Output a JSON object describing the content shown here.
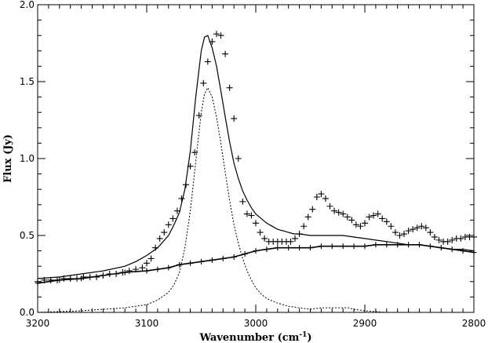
{
  "chart_data": {
    "type": "line",
    "title": "",
    "xlabel_main": "Wavenumber (cm",
    "xlabel_sup": "-1",
    "xlabel_tail": ")",
    "ylabel": "Flux (Jy)",
    "xlim": [
      3200,
      2800
    ],
    "ylim": [
      0.0,
      2.0
    ],
    "x_reversed": true,
    "grid": false,
    "x_ticks": [
      3200,
      3100,
      3000,
      2900,
      2800
    ],
    "x_tick_labels": [
      "3200",
      "3100",
      "3000",
      "2900",
      "2800"
    ],
    "y_ticks": [
      0.0,
      0.5,
      1.0,
      1.5,
      2.0
    ],
    "y_tick_labels": [
      "0.0",
      "0.5",
      "1.0",
      "1.5",
      "2.0"
    ],
    "series": [
      {
        "style": "plus-markers",
        "x": [
          3200,
          3194,
          3188,
          3182,
          3176,
          3170,
          3164,
          3158,
          3152,
          3146,
          3140,
          3134,
          3128,
          3122,
          3116,
          3110,
          3104,
          3100,
          3096,
          3092,
          3088,
          3084,
          3080,
          3076,
          3072,
          3068,
          3064,
          3060,
          3056,
          3052,
          3048,
          3044,
          3040,
          3036,
          3032,
          3028,
          3024,
          3020,
          3016,
          3012,
          3008,
          3004,
          3000,
          2996,
          2992,
          2988,
          2984,
          2980,
          2976,
          2972,
          2968,
          2964,
          2960,
          2956,
          2952,
          2948,
          2944,
          2940,
          2936,
          2932,
          2928,
          2924,
          2920,
          2916,
          2912,
          2908,
          2904,
          2900,
          2896,
          2892,
          2888,
          2884,
          2880,
          2876,
          2872,
          2868,
          2864,
          2860,
          2856,
          2852,
          2848,
          2844,
          2840,
          2836,
          2832,
          2828,
          2824,
          2820,
          2816,
          2812,
          2808,
          2804,
          2800
        ],
        "y": [
          0.2,
          0.21,
          0.21,
          0.21,
          0.22,
          0.22,
          0.22,
          0.23,
          0.23,
          0.23,
          0.24,
          0.25,
          0.25,
          0.26,
          0.27,
          0.28,
          0.29,
          0.32,
          0.35,
          0.42,
          0.48,
          0.52,
          0.57,
          0.61,
          0.66,
          0.74,
          0.83,
          0.95,
          1.04,
          1.28,
          1.49,
          1.63,
          1.76,
          1.81,
          1.8,
          1.68,
          1.46,
          1.26,
          1.0,
          0.72,
          0.64,
          0.63,
          0.58,
          0.52,
          0.48,
          0.46,
          0.46,
          0.46,
          0.46,
          0.46,
          0.46,
          0.48,
          0.51,
          0.56,
          0.62,
          0.67,
          0.75,
          0.77,
          0.74,
          0.69,
          0.66,
          0.65,
          0.64,
          0.62,
          0.6,
          0.57,
          0.56,
          0.58,
          0.62,
          0.63,
          0.64,
          0.61,
          0.59,
          0.56,
          0.52,
          0.5,
          0.51,
          0.53,
          0.54,
          0.55,
          0.56,
          0.55,
          0.52,
          0.49,
          0.47,
          0.46,
          0.46,
          0.47,
          0.48,
          0.48,
          0.49,
          0.49,
          0.49
        ]
      },
      {
        "style": "solid",
        "x": [
          3200,
          3180,
          3160,
          3140,
          3120,
          3110,
          3100,
          3090,
          3080,
          3075,
          3070,
          3065,
          3060,
          3055,
          3050,
          3047,
          3044,
          3040,
          3036,
          3032,
          3028,
          3024,
          3020,
          3016,
          3012,
          3008,
          3004,
          3000,
          2995,
          2990,
          2985,
          2980,
          2975,
          2970,
          2965,
          2960,
          2950,
          2940,
          2930,
          2920,
          2910,
          2900,
          2890,
          2880,
          2870,
          2860,
          2850,
          2840,
          2830,
          2820,
          2810,
          2800
        ],
        "y": [
          0.22,
          0.23,
          0.25,
          0.27,
          0.3,
          0.33,
          0.37,
          0.42,
          0.5,
          0.57,
          0.65,
          0.8,
          1.05,
          1.4,
          1.7,
          1.79,
          1.8,
          1.72,
          1.6,
          1.44,
          1.27,
          1.11,
          0.97,
          0.87,
          0.79,
          0.73,
          0.68,
          0.64,
          0.61,
          0.58,
          0.56,
          0.54,
          0.53,
          0.52,
          0.51,
          0.51,
          0.5,
          0.5,
          0.5,
          0.5,
          0.49,
          0.48,
          0.47,
          0.46,
          0.45,
          0.44,
          0.44,
          0.43,
          0.42,
          0.41,
          0.41,
          0.4
        ]
      },
      {
        "style": "dotted",
        "x": [
          3200,
          3160,
          3120,
          3100,
          3090,
          3080,
          3075,
          3070,
          3065,
          3060,
          3055,
          3050,
          3047,
          3044,
          3040,
          3036,
          3032,
          3028,
          3024,
          3020,
          3016,
          3012,
          3008,
          3004,
          3000,
          2995,
          2990,
          2980,
          2970,
          2960,
          2950,
          2940,
          2935,
          2930,
          2925,
          2920,
          2915,
          2910,
          2900,
          2880,
          2860,
          2840,
          2820,
          2800
        ],
        "y": [
          0.0,
          0.01,
          0.03,
          0.05,
          0.08,
          0.13,
          0.18,
          0.26,
          0.42,
          0.66,
          0.98,
          1.3,
          1.42,
          1.46,
          1.4,
          1.27,
          1.1,
          0.91,
          0.73,
          0.57,
          0.45,
          0.35,
          0.27,
          0.21,
          0.16,
          0.12,
          0.09,
          0.06,
          0.04,
          0.03,
          0.02,
          0.03,
          0.03,
          0.03,
          0.03,
          0.03,
          0.03,
          0.02,
          0.01,
          0.0,
          0.0,
          0.0,
          0.0,
          0.0
        ]
      },
      {
        "style": "continuum-with-plus",
        "x": [
          3200,
          3180,
          3160,
          3140,
          3120,
          3100,
          3090,
          3080,
          3070,
          3060,
          3050,
          3040,
          3030,
          3020,
          3010,
          3000,
          2990,
          2980,
          2970,
          2960,
          2950,
          2940,
          2930,
          2920,
          2910,
          2900,
          2890,
          2880,
          2870,
          2860,
          2850,
          2840,
          2830,
          2820,
          2810,
          2800
        ],
        "y": [
          0.19,
          0.21,
          0.22,
          0.24,
          0.26,
          0.27,
          0.28,
          0.29,
          0.31,
          0.32,
          0.33,
          0.34,
          0.35,
          0.36,
          0.38,
          0.4,
          0.41,
          0.42,
          0.42,
          0.42,
          0.42,
          0.43,
          0.43,
          0.43,
          0.43,
          0.43,
          0.44,
          0.44,
          0.44,
          0.44,
          0.44,
          0.43,
          0.42,
          0.41,
          0.4,
          0.39
        ]
      }
    ]
  }
}
